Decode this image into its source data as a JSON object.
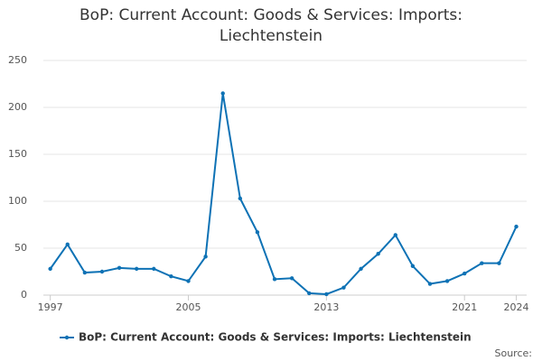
{
  "chart_data": {
    "type": "line",
    "title": "BoP: Current Account: Goods & Services: Imports: Liechtenstein",
    "x": [
      1997,
      1998,
      1999,
      2000,
      2001,
      2002,
      2003,
      2004,
      2005,
      2006,
      2007,
      2008,
      2009,
      2010,
      2011,
      2012,
      2013,
      2014,
      2015,
      2016,
      2017,
      2018,
      2019,
      2020,
      2021,
      2022,
      2023,
      2024
    ],
    "series": [
      {
        "name": "BoP: Current Account: Goods & Services: Imports: Liechtenstein",
        "color": "#0e72b5",
        "values": [
          28,
          54,
          24,
          25,
          29,
          28,
          28,
          20,
          15,
          41,
          215,
          103,
          67,
          17,
          18,
          2,
          1,
          8,
          28,
          44,
          64,
          31,
          12,
          15,
          23,
          34,
          34,
          73
        ]
      }
    ],
    "xlim": [
      1996.6,
      2024.6
    ],
    "xticks": [
      1997,
      2005,
      2013,
      2021,
      2024
    ],
    "ylim": [
      0,
      250
    ],
    "yticks": [
      0,
      50,
      100,
      150,
      200,
      250
    ],
    "grid": true,
    "source_label": "Source:"
  }
}
